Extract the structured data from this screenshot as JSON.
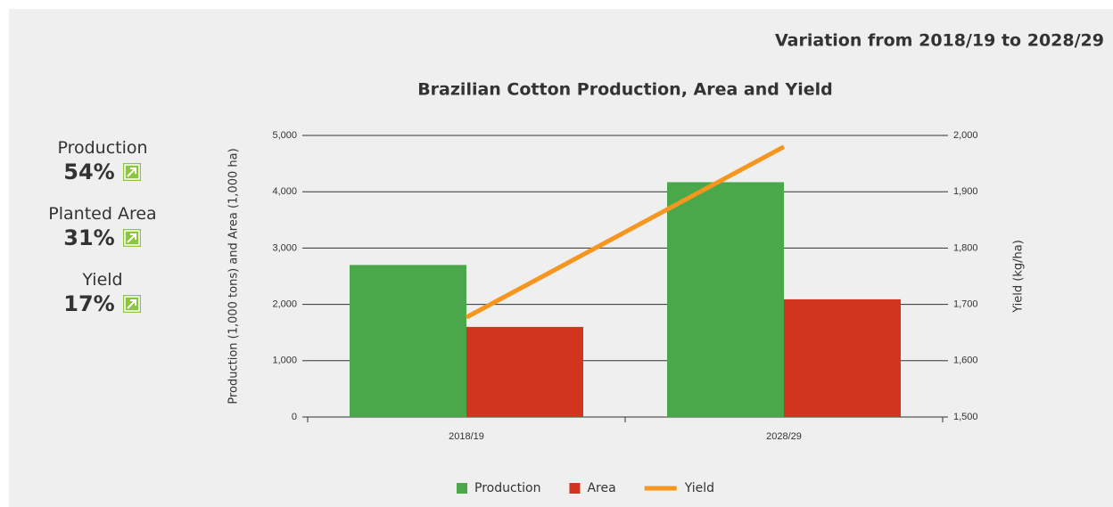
{
  "header": "Variation from 2018/19 to 2028/29",
  "summary": [
    {
      "label": "Production",
      "value": "54%"
    },
    {
      "label": "Planted Area",
      "value": "31%"
    },
    {
      "label": "Yield",
      "value": "17%"
    }
  ],
  "chart_data": {
    "type": "bar",
    "title": "Brazilian Cotton Production, Area and Yield",
    "y_label": "Production (1,000 tons) and Area (1,000 ha)",
    "y2_label": "Yield (kg/ha)",
    "categories": [
      "2018/19",
      "2028/29"
    ],
    "series": [
      {
        "name": "Production",
        "type": "bar",
        "color": "#4aa84a",
        "values": [
          2700,
          4170
        ]
      },
      {
        "name": "Area",
        "type": "bar",
        "color": "#d1341f",
        "values": [
          1600,
          2090
        ]
      },
      {
        "name": "Yield",
        "type": "line",
        "axis": "y2",
        "color": "#f7961e",
        "values": [
          1677,
          1980
        ]
      }
    ],
    "ylim": [
      0,
      5000
    ],
    "yticks": [
      0,
      {
        "value": 1000,
        "label": "1,000"
      },
      {
        "value": 2000,
        "label": "2,000"
      },
      {
        "value": 3000,
        "label": "3,000"
      },
      {
        "value": 4000,
        "label": "4,000"
      },
      {
        "value": 5000,
        "label": "5,000"
      }
    ],
    "y2lim": [
      1500,
      2000
    ],
    "y2ticks": [
      {
        "value": 1500,
        "label": "1,500"
      },
      {
        "value": 1600,
        "label": "1,600"
      },
      {
        "value": 1700,
        "label": "1,700"
      },
      {
        "value": 1800,
        "label": "1,800"
      },
      {
        "value": 1900,
        "label": "1,900"
      },
      {
        "value": 2000,
        "label": "2,000"
      }
    ],
    "grid": true,
    "legend": "bottom"
  }
}
